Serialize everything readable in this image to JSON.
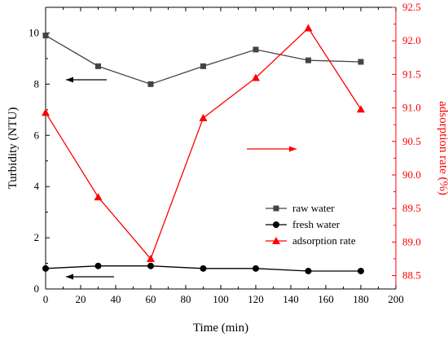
{
  "chart_data": {
    "type": "line",
    "x": [
      0,
      30,
      60,
      90,
      120,
      150,
      180
    ],
    "xlabel": "Time (min)",
    "xlim": [
      0,
      200
    ],
    "xticks": [
      "0",
      "20",
      "40",
      "60",
      "80",
      "100",
      "120",
      "140",
      "160",
      "180",
      "200"
    ],
    "grid": false,
    "legend_position": "bottom-right",
    "axes": {
      "left": {
        "label": "Turbidity (NTU)",
        "ylim": [
          0,
          11
        ],
        "ticks": [
          "0",
          "2",
          "4",
          "6",
          "8",
          "10"
        ],
        "color": "#000000"
      },
      "right": {
        "label": "adsorption rate (%)",
        "ylim": [
          88.3,
          92.5
        ],
        "ticks": [
          "88.5",
          "89.0",
          "89.5",
          "90.0",
          "90.5",
          "91.0",
          "91.5",
          "92.0",
          "92.5"
        ],
        "color": "#ff0000"
      }
    },
    "series": [
      {
        "name": "raw water",
        "axis": "left",
        "marker": "square",
        "color": "#444444",
        "values": [
          9.9,
          8.7,
          8.0,
          8.7,
          9.35,
          8.93,
          8.87
        ]
      },
      {
        "name": "fresh water",
        "axis": "left",
        "marker": "circle",
        "color": "#000000",
        "values": [
          0.8,
          0.9,
          0.9,
          0.8,
          0.8,
          0.7,
          0.7
        ]
      },
      {
        "name": "adsorption rate",
        "axis": "right",
        "marker": "triangle",
        "color": "#ff0000",
        "values": [
          90.93,
          89.67,
          88.75,
          90.85,
          91.45,
          92.19,
          90.98
        ]
      }
    ]
  }
}
